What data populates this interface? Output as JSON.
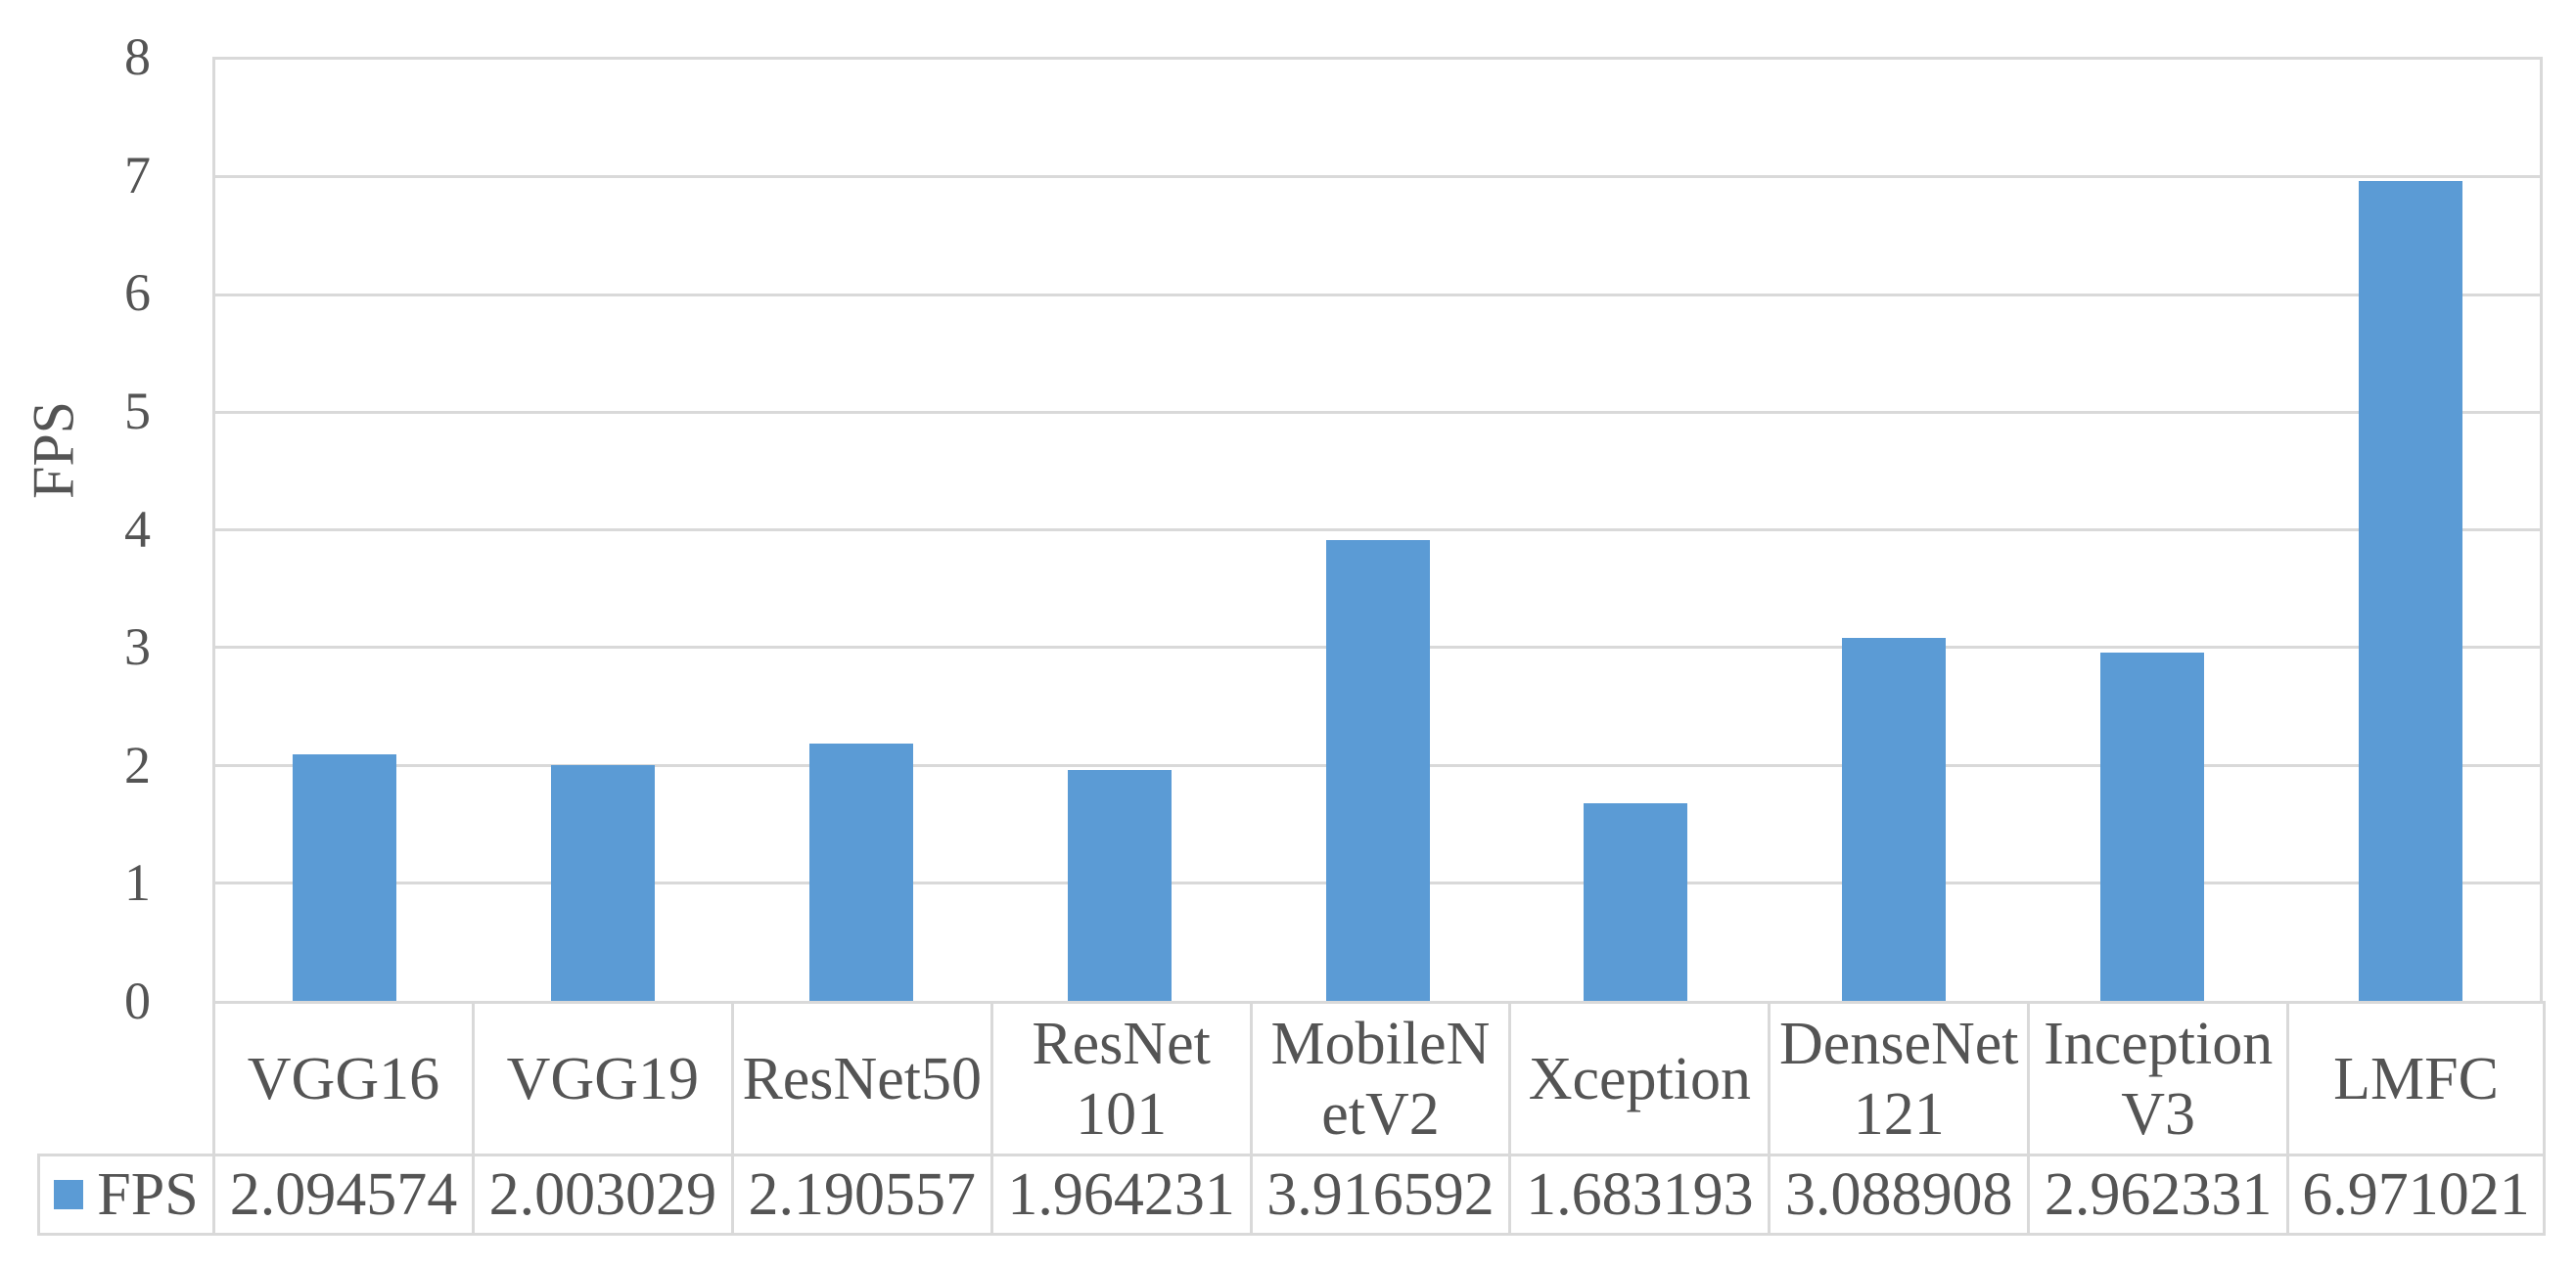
{
  "chart_data": {
    "type": "bar",
    "title": "",
    "xlabel": "",
    "ylabel": "FPS",
    "ylim": [
      0,
      8
    ],
    "ytick_labels": [
      "8",
      "7",
      "6",
      "5",
      "4",
      "3",
      "2",
      "1",
      "0"
    ],
    "grid": "horizontal gridlines on",
    "legend_position": "bottom-left of data table",
    "categories": [
      "VGG16",
      "VGG19",
      "ResNet50",
      "ResNet\n101",
      "MobileN\netV2",
      "Xception",
      "DenseNet\n121",
      "Inception\nV3",
      "LMFC"
    ],
    "series": [
      {
        "name": "FPS",
        "values": [
          2.094574,
          2.003029,
          2.190557,
          1.964231,
          3.916592,
          1.683193,
          3.088908,
          2.962331,
          6.971021
        ]
      }
    ],
    "value_labels": [
      "2.094574",
      "2.003029",
      "2.190557",
      "1.964231",
      "3.916592",
      "1.683193",
      "3.088908",
      "2.962331",
      "6.971021"
    ]
  },
  "colors": {
    "bar": "#5b9bd5",
    "gridline": "#d9d9d9",
    "text": "#545454"
  }
}
